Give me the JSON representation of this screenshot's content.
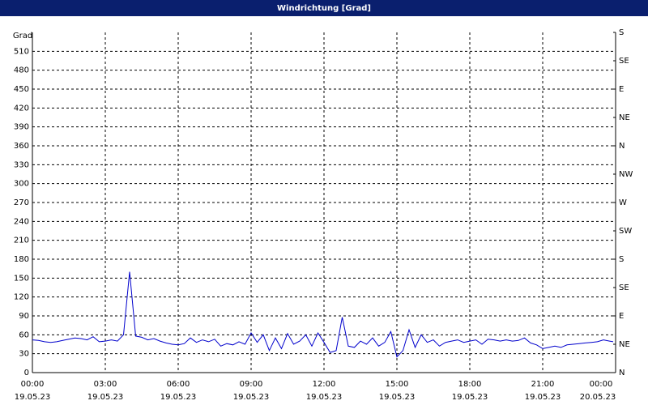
{
  "chart_data": {
    "type": "line",
    "title": "Windrichtung [Grad]",
    "ylabel": "Grad",
    "x": [
      0,
      0.25,
      0.5,
      0.75,
      1,
      1.25,
      1.5,
      1.75,
      2,
      2.25,
      2.5,
      2.75,
      3,
      3.25,
      3.5,
      3.75,
      4,
      4.25,
      4.5,
      4.75,
      5,
      5.25,
      5.5,
      5.75,
      6,
      6.25,
      6.5,
      6.75,
      7,
      7.25,
      7.5,
      7.75,
      8,
      8.25,
      8.5,
      8.75,
      9,
      9.25,
      9.5,
      9.75,
      10,
      10.25,
      10.5,
      10.75,
      11,
      11.25,
      11.5,
      11.75,
      12,
      12.25,
      12.5,
      12.75,
      13,
      13.25,
      13.5,
      13.75,
      14,
      14.25,
      14.5,
      14.75,
      15,
      15.25,
      15.5,
      15.75,
      16,
      16.25,
      16.5,
      16.75,
      17,
      17.25,
      17.5,
      17.75,
      18,
      18.25,
      18.5,
      18.75,
      19,
      19.25,
      19.5,
      19.75,
      20,
      20.25,
      20.5,
      20.75,
      21,
      21.25,
      21.5,
      21.75,
      22,
      22.25,
      22.5,
      22.75,
      23,
      23.25,
      23.5,
      23.75,
      23.9
    ],
    "series": [
      {
        "color": "#0000cc",
        "values": [
          52,
          51,
          49,
          48,
          49,
          51,
          53,
          55,
          54,
          52,
          57,
          49,
          50,
          52,
          50,
          60,
          160,
          58,
          56,
          52,
          54,
          50,
          47,
          45,
          44,
          46,
          55,
          48,
          52,
          49,
          53,
          42,
          46,
          44,
          49,
          45,
          63,
          48,
          60,
          35,
          55,
          38,
          62,
          45,
          50,
          60,
          42,
          63,
          48,
          32,
          35,
          88,
          42,
          40,
          50,
          45,
          55,
          42,
          48,
          65,
          25,
          35,
          68,
          40,
          60,
          48,
          52,
          42,
          48,
          50,
          52,
          48,
          50,
          52,
          45,
          53,
          52,
          50,
          52,
          50,
          51,
          55,
          47,
          44,
          38,
          40,
          42,
          40,
          44,
          45,
          46,
          47,
          48,
          49,
          52,
          50,
          49
        ]
      }
    ],
    "xlim": [
      0,
      24
    ],
    "xticks": [
      {
        "value": 0,
        "label": "00:00"
      },
      {
        "value": 3,
        "label": "03:00"
      },
      {
        "value": 6,
        "label": "06:00"
      },
      {
        "value": 9,
        "label": "09:00"
      },
      {
        "value": 12,
        "label": "12:00"
      },
      {
        "value": 15,
        "label": "15:00"
      },
      {
        "value": 18,
        "label": "18:00"
      },
      {
        "value": 21,
        "label": "21:00"
      },
      {
        "value": 24,
        "label": "00:00"
      }
    ],
    "xtick_dates": [
      "19.05.23",
      "19.05.23",
      "19.05.23",
      "19.05.23",
      "19.05.23",
      "19.05.23",
      "19.05.23",
      "19.05.23",
      "20.05.23"
    ],
    "ylim": [
      0,
      540
    ],
    "yticks": [
      0,
      30,
      60,
      90,
      120,
      150,
      180,
      210,
      240,
      270,
      300,
      330,
      360,
      390,
      420,
      450,
      480,
      510
    ],
    "y2lim": [
      0,
      540
    ],
    "y2ticks": [
      {
        "value": 0,
        "label": "N"
      },
      {
        "value": 45,
        "label": "NE"
      },
      {
        "value": 90,
        "label": "E"
      },
      {
        "value": 135,
        "label": "SE"
      },
      {
        "value": 180,
        "label": "S"
      },
      {
        "value": 225,
        "label": "SW"
      },
      {
        "value": 270,
        "label": "W"
      },
      {
        "value": 315,
        "label": "NW"
      },
      {
        "value": 360,
        "label": "N"
      },
      {
        "value": 405,
        "label": "NE"
      },
      {
        "value": 450,
        "label": "E"
      },
      {
        "value": 495,
        "label": "SE"
      },
      {
        "value": 540,
        "label": "S"
      }
    ],
    "grid": true
  }
}
